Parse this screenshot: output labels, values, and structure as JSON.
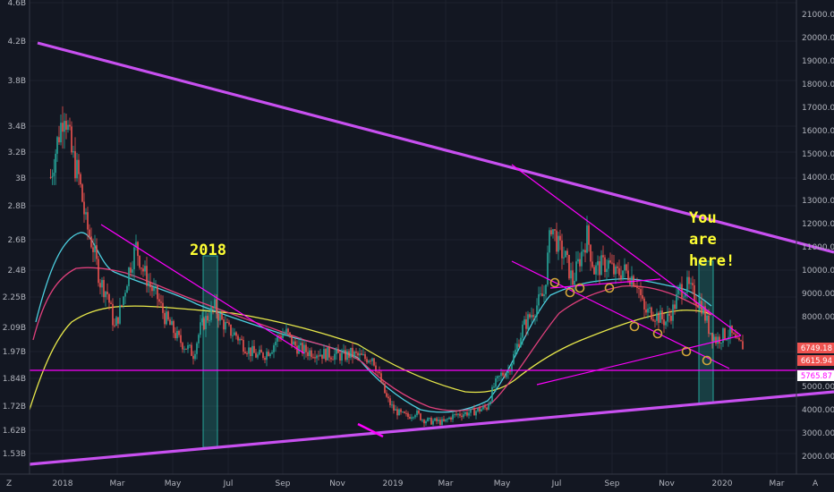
{
  "chart_data": {
    "type": "candlestick",
    "y_left_ticks": [
      "4.6B",
      "4.2B",
      "3.8B",
      "3.4B",
      "3.2B",
      "3B",
      "2.8B",
      "2.6B",
      "2.4B",
      "2.25B",
      "2.09B",
      "1.97B",
      "1.84B",
      "1.72B",
      "1.62B",
      "1.53B"
    ],
    "y_right_ticks": [
      "21000.00",
      "20000.00",
      "19000.00",
      "18000.00",
      "17000.00",
      "16000.00",
      "15000.00",
      "14000.00",
      "13000.00",
      "12000.00",
      "11000.00",
      "10000.00",
      "9000.00",
      "8000.00",
      "5000.00",
      "4000.00",
      "3000.00",
      "2000.00"
    ],
    "x_ticks": [
      "2018",
      "Mar",
      "May",
      "Jul",
      "Sep",
      "Nov",
      "2019",
      "Mar",
      "May",
      "Jul",
      "Sep",
      "Nov",
      "2020",
      "Mar"
    ],
    "price_labels": [
      {
        "text": "6749.18",
        "color": "#ef5350"
      },
      {
        "text": "6615.94",
        "color": "#ef5350"
      },
      {
        "text": "5765.87",
        "color": "#ff00ff"
      }
    ],
    "annotations": [
      {
        "text": "2018"
      },
      {
        "text": "You"
      },
      {
        "text": "are"
      },
      {
        "text": "here!"
      }
    ],
    "corner_labels": {
      "left": "Z",
      "right": "A"
    },
    "colors": {
      "background": "#131722",
      "up": "#26a69a",
      "down": "#ef5350",
      "trendline": "#c850f0",
      "magenta": "#ff00ff",
      "ma_yellow": "#e8e84a",
      "ma_cyan": "#4dd0e1",
      "ma_pink": "#e0407c",
      "text": "#ffff33"
    },
    "price_path": [
      [
        8.3,
        14000
      ],
      [
        12,
        15500
      ],
      [
        16,
        17000
      ],
      [
        20,
        15000
      ],
      [
        24,
        14000
      ],
      [
        28,
        12000
      ],
      [
        32,
        11000
      ],
      [
        36,
        9500
      ],
      [
        40,
        9000
      ],
      [
        44,
        7500
      ],
      [
        48,
        8500
      ],
      [
        52,
        10000
      ],
      [
        56,
        11000
      ],
      [
        60,
        10000
      ],
      [
        64,
        9300
      ],
      [
        68,
        8800
      ],
      [
        72,
        8000
      ],
      [
        76,
        7500
      ],
      [
        80,
        7000
      ],
      [
        84,
        6700
      ],
      [
        88,
        6400
      ],
      [
        92,
        7500
      ],
      [
        96,
        8000
      ],
      [
        100,
        8400
      ],
      [
        104,
        7800
      ],
      [
        108,
        7400
      ],
      [
        112,
        7200
      ],
      [
        116,
        6800
      ],
      [
        120,
        6500
      ],
      [
        124,
        6300
      ],
      [
        128,
        6400
      ],
      [
        132,
        6700
      ],
      [
        136,
        7200
      ],
      [
        140,
        7300
      ],
      [
        144,
        6800
      ],
      [
        148,
        6600
      ],
      [
        152,
        6500
      ],
      [
        156,
        6500
      ],
      [
        160,
        6400
      ],
      [
        164,
        6400
      ],
      [
        168,
        6350
      ],
      [
        172,
        6300
      ],
      [
        176,
        6400
      ],
      [
        180,
        6300
      ],
      [
        184,
        6200
      ],
      [
        188,
        6300
      ],
      [
        192,
        5400
      ],
      [
        196,
        4500
      ],
      [
        200,
        4000
      ],
      [
        204,
        3800
      ],
      [
        208,
        3700
      ],
      [
        212,
        3900
      ],
      [
        216,
        3600
      ],
      [
        220,
        3500
      ],
      [
        224,
        3500
      ],
      [
        228,
        3450
      ],
      [
        232,
        3700
      ],
      [
        236,
        3800
      ],
      [
        240,
        3850
      ],
      [
        244,
        3900
      ],
      [
        248,
        4000
      ],
      [
        252,
        4100
      ],
      [
        256,
        5000
      ],
      [
        260,
        5500
      ],
      [
        264,
        5700
      ],
      [
        268,
        6500
      ],
      [
        272,
        7500
      ],
      [
        276,
        8000
      ],
      [
        280,
        8500
      ],
      [
        284,
        9000
      ],
      [
        288,
        12000
      ],
      [
        292,
        11000
      ],
      [
        296,
        10500
      ],
      [
        300,
        9500
      ],
      [
        304,
        10500
      ],
      [
        308,
        11500
      ],
      [
        312,
        10000
      ],
      [
        316,
        10200
      ],
      [
        320,
        10300
      ],
      [
        324,
        9800
      ],
      [
        328,
        10000
      ],
      [
        332,
        9800
      ],
      [
        336,
        9500
      ],
      [
        340,
        8200
      ],
      [
        344,
        8200
      ],
      [
        348,
        8000
      ],
      [
        352,
        7800
      ],
      [
        356,
        8300
      ],
      [
        360,
        9200
      ],
      [
        364,
        9300
      ],
      [
        368,
        8900
      ],
      [
        372,
        8500
      ],
      [
        376,
        7500
      ],
      [
        380,
        7000
      ],
      [
        384,
        7200
      ],
      [
        388,
        7300
      ],
      [
        392,
        6800
      ],
      [
        396,
        6750
      ]
    ]
  }
}
